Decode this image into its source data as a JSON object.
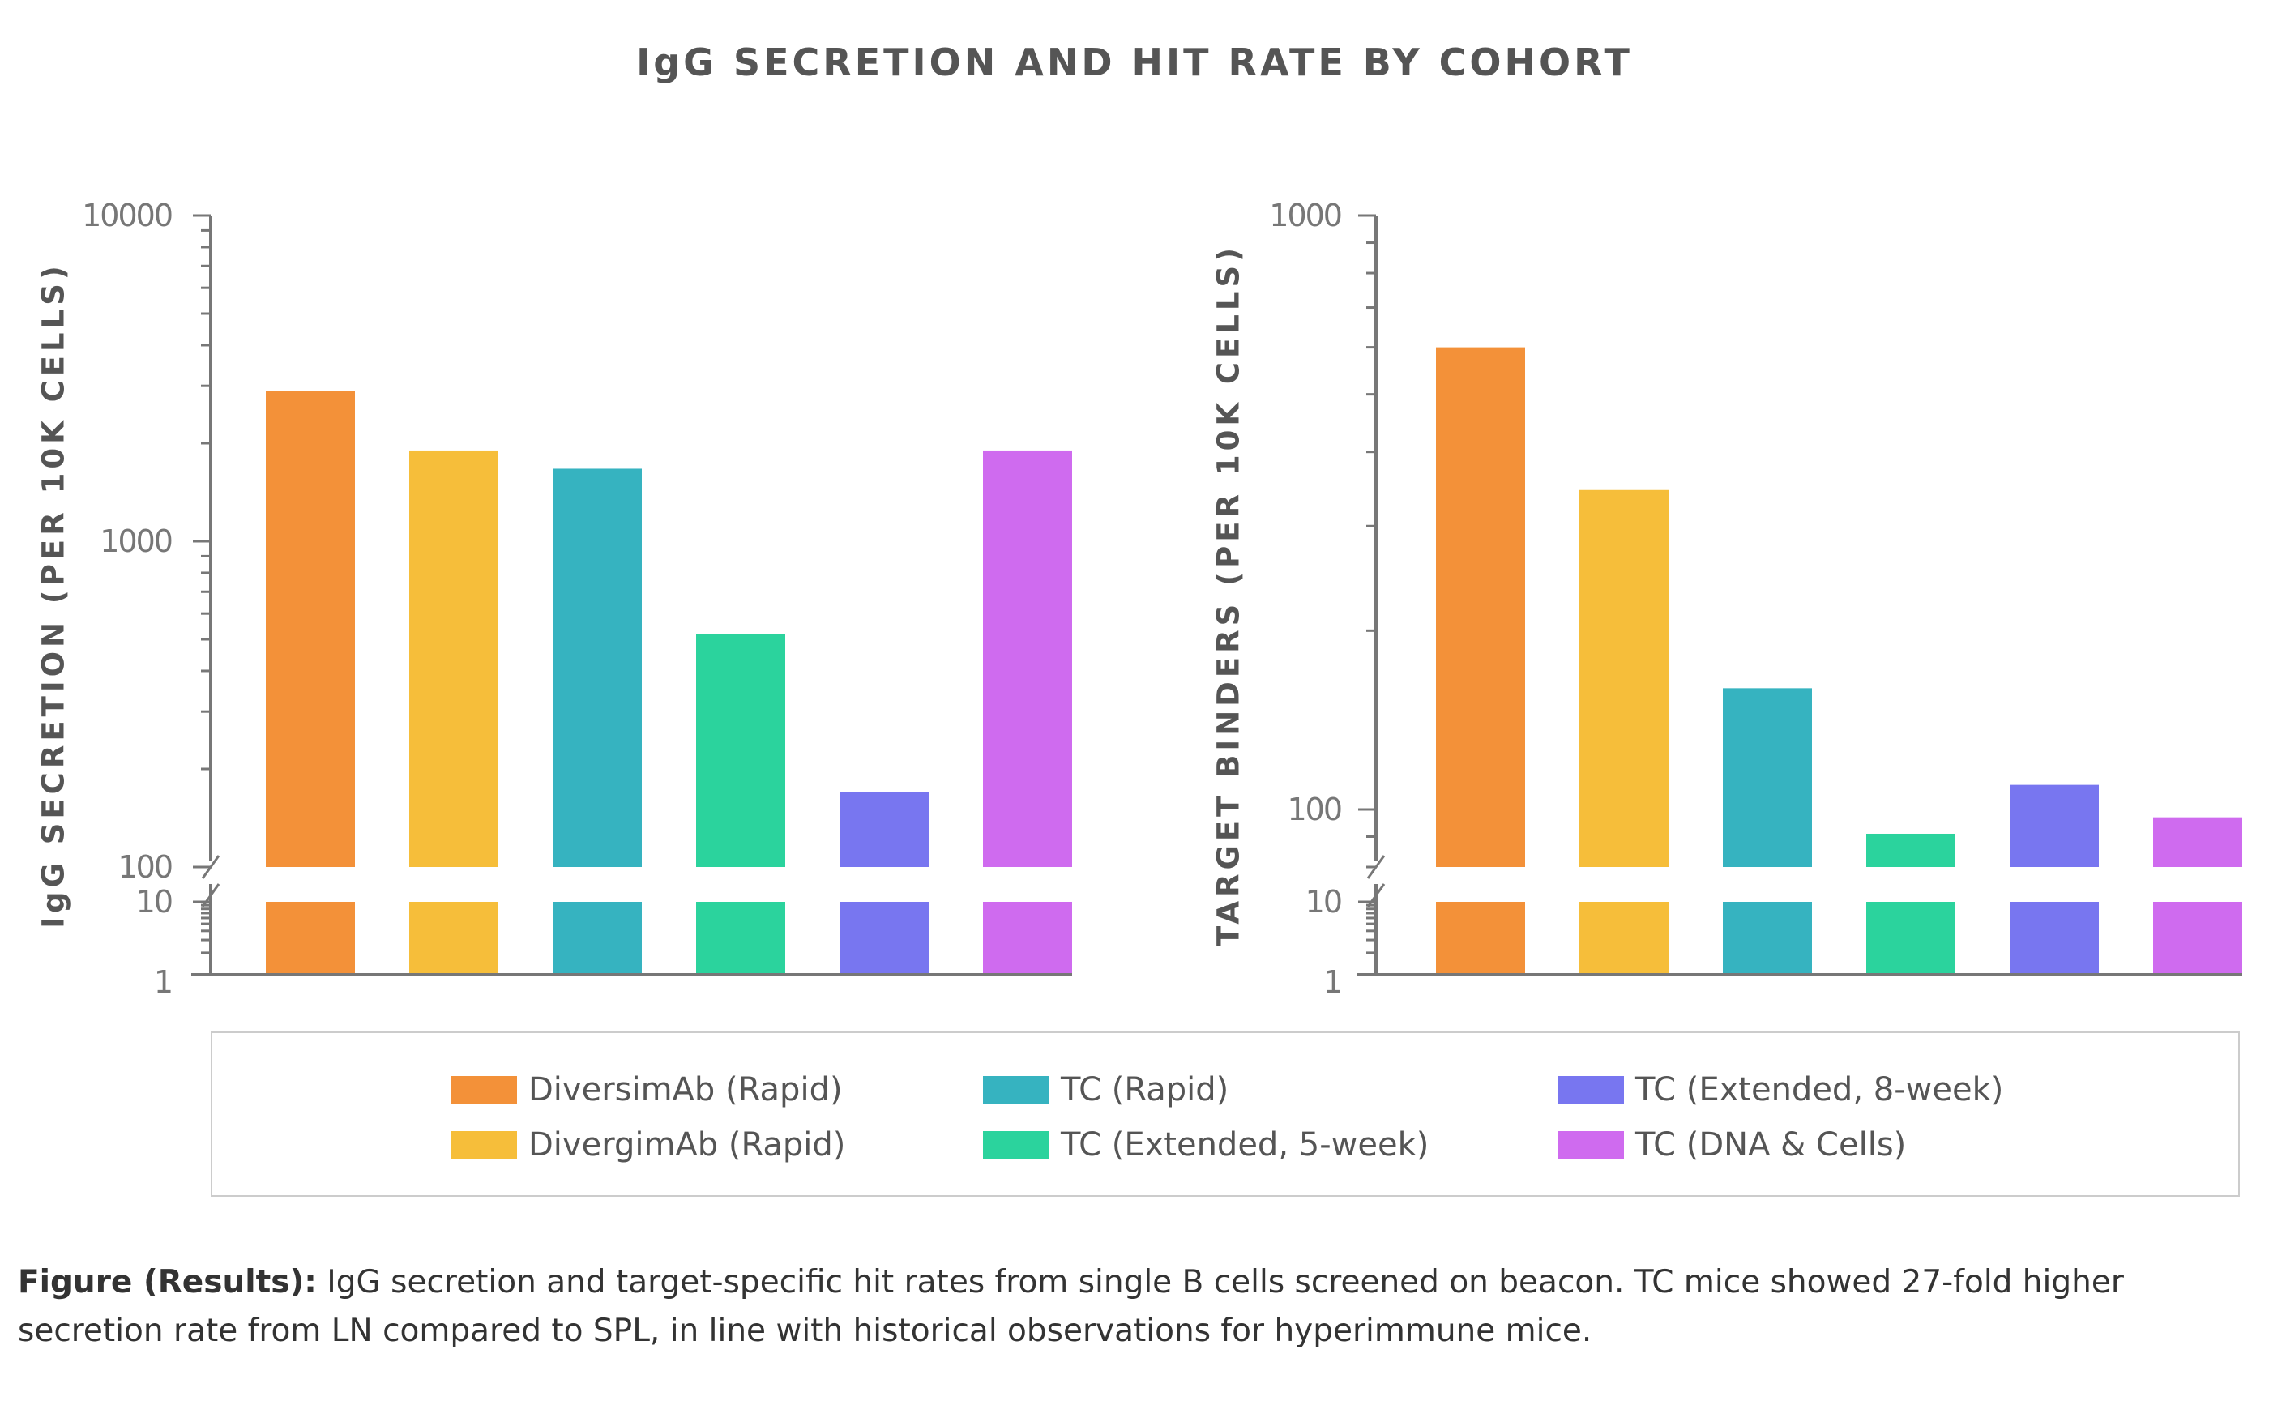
{
  "title": "IgG SECRETION AND HIT RATE BY COHORT",
  "legend": [
    {
      "label": "DiversimAb (Rapid)",
      "color": "#F39139"
    },
    {
      "label": "DivergimAb (Rapid)",
      "color": "#F6BE3A"
    },
    {
      "label": "TC (Rapid)",
      "color": "#36B3C0"
    },
    {
      "label": "TC (Extended, 5-week)",
      "color": "#2BD39D"
    },
    {
      "label": "TC (Extended, 8-week)",
      "color": "#7876F0"
    },
    {
      "label": "TC (DNA & Cells)",
      "color": "#CF6BEF"
    }
  ],
  "caption": {
    "bold": "Figure (Results):",
    "text": " IgG secretion and target-specific hit rates from single B cells screened on beacon. TC mice showed 27-fold higher secretion rate from LN compared to SPL, in line with historical observations for hyperimmune mice."
  },
  "chart_data": [
    {
      "type": "bar",
      "ylabel": "IgG SECRETION (PER 10K CELLS)",
      "yscale": "log",
      "broken_axis": true,
      "ylim_upper": [
        100,
        10000
      ],
      "ylim_lower": [
        1,
        10
      ],
      "yticks_upper": [
        "10000",
        "1000",
        "100"
      ],
      "yticks_lower": [
        "10",
        "1"
      ],
      "categories": [
        "DiversimAb (Rapid)",
        "DivergimAb (Rapid)",
        "TC (Rapid)",
        "TC (Extended, 5-week)",
        "TC (Extended, 8-week)",
        "TC (DNA & Cells)"
      ],
      "values": [
        2900,
        1900,
        1670,
        520,
        170,
        1900
      ],
      "grid": false
    },
    {
      "type": "bar",
      "ylabel": "TARGET BINDERS (PER 10K CELLS)",
      "yscale": "log",
      "broken_axis": true,
      "ylim_upper": [
        80,
        1000
      ],
      "ylim_lower": [
        1,
        10
      ],
      "yticks_upper": [
        "1000",
        "100"
      ],
      "yticks_lower": [
        "10",
        "1"
      ],
      "categories": [
        "DiversimAb (Rapid)",
        "DivergimAb (Rapid)",
        "TC (Rapid)",
        "TC (Extended, 5-week)",
        "TC (Extended, 8-week)",
        "TC (DNA & Cells)"
      ],
      "values": [
        600,
        345,
        160,
        91,
        110,
        97
      ],
      "grid": false
    }
  ]
}
